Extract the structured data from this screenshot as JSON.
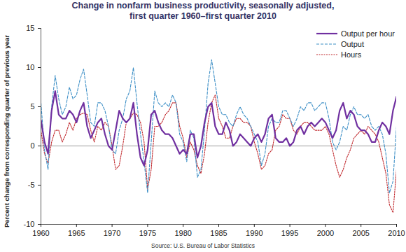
{
  "chart_data": {
    "type": "line",
    "title": "Change in nonfarm business productivity, seasonally adjusted,\nfirst quarter 1960–first quarter 2010",
    "y_label": "Percent change from corresponding quarter of previous year",
    "source": "Source:  U.S. Bureau of Labor Statistics",
    "x": [
      1960,
      1960.5,
      1961,
      1961.5,
      1962,
      1962.5,
      1963,
      1963.5,
      1964,
      1964.5,
      1965,
      1965.5,
      1966,
      1966.5,
      1967,
      1967.5,
      1968,
      1968.5,
      1969,
      1969.5,
      1970,
      1970.5,
      1971,
      1971.5,
      1972,
      1972.5,
      1973,
      1973.5,
      1974,
      1974.5,
      1975,
      1975.5,
      1976,
      1976.5,
      1977,
      1977.5,
      1978,
      1978.5,
      1979,
      1979.5,
      1980,
      1980.5,
      1981,
      1981.5,
      1982,
      1982.5,
      1983,
      1983.5,
      1984,
      1984.5,
      1985,
      1985.5,
      1986,
      1986.5,
      1987,
      1987.5,
      1988,
      1988.5,
      1989,
      1989.5,
      1990,
      1990.5,
      1991,
      1991.5,
      1992,
      1992.5,
      1993,
      1993.5,
      1994,
      1994.5,
      1995,
      1995.5,
      1996,
      1996.5,
      1997,
      1997.5,
      1998,
      1998.5,
      1999,
      1999.5,
      2000,
      2000.5,
      2001,
      2001.5,
      2002,
      2002.5,
      2003,
      2003.5,
      2004,
      2004.5,
      2005,
      2005.5,
      2006,
      2006.5,
      2007,
      2007.5,
      2008,
      2008.5,
      2009,
      2009.5,
      2010
    ],
    "series": [
      {
        "name": "Output per hour",
        "color": "#7030a0",
        "line_style": "solid",
        "values": [
          3.3,
          0.5,
          -1.0,
          4.5,
          7.0,
          4.0,
          3.5,
          3.5,
          4.5,
          4.0,
          3.0,
          4.5,
          5.5,
          2.5,
          1.0,
          2.0,
          3.0,
          3.5,
          1.5,
          0.0,
          -0.5,
          2.0,
          4.5,
          3.5,
          3.0,
          3.5,
          5.5,
          1.5,
          -1.5,
          -2.5,
          -0.5,
          4.0,
          4.5,
          3.0,
          2.0,
          1.5,
          1.5,
          1.0,
          0.0,
          -1.0,
          -0.5,
          -1.0,
          1.5,
          1.5,
          -1.5,
          0.0,
          3.0,
          5.0,
          5.5,
          2.5,
          1.5,
          1.5,
          3.0,
          2.0,
          0.0,
          0.5,
          1.5,
          1.0,
          0.5,
          0.0,
          1.0,
          1.5,
          0.5,
          1.5,
          3.5,
          4.0,
          1.0,
          0.5,
          0.5,
          1.0,
          0.0,
          0.5,
          2.0,
          2.5,
          1.5,
          2.5,
          3.0,
          2.5,
          3.0,
          3.5,
          3.0,
          2.0,
          1.0,
          2.0,
          4.5,
          5.5,
          3.5,
          4.5,
          4.0,
          2.5,
          2.0,
          2.0,
          1.5,
          0.5,
          0.5,
          2.0,
          3.0,
          2.5,
          1.5,
          4.5,
          6.3
        ]
      },
      {
        "name": "Output",
        "color": "#3d8fc6",
        "line_style": "dashed",
        "values": [
          5.5,
          -0.5,
          -3.0,
          5.0,
          9.0,
          6.0,
          4.0,
          5.0,
          7.5,
          6.0,
          6.5,
          8.5,
          9.8,
          6.5,
          3.0,
          2.5,
          5.5,
          5.5,
          4.5,
          2.5,
          -0.5,
          -1.0,
          2.0,
          3.5,
          6.0,
          7.0,
          10.0,
          5.5,
          1.5,
          -2.0,
          -6.0,
          0.5,
          7.0,
          5.5,
          5.0,
          5.5,
          5.0,
          6.5,
          5.5,
          1.5,
          0.5,
          -2.0,
          2.0,
          1.0,
          -4.0,
          -3.0,
          2.0,
          8.0,
          11.0,
          8.0,
          5.0,
          4.0,
          4.0,
          3.0,
          2.5,
          4.0,
          5.0,
          4.0,
          3.5,
          2.5,
          1.5,
          0.5,
          -2.5,
          -1.0,
          2.5,
          3.5,
          3.0,
          3.0,
          4.5,
          4.5,
          3.5,
          2.5,
          3.5,
          5.0,
          4.5,
          5.5,
          5.5,
          4.5,
          5.0,
          5.5,
          5.5,
          3.5,
          0.5,
          -0.5,
          0.5,
          2.5,
          2.0,
          4.0,
          5.0,
          4.0,
          4.0,
          3.5,
          4.0,
          2.5,
          2.0,
          2.5,
          1.5,
          -1.0,
          -6.0,
          -4.5,
          2.5
        ]
      },
      {
        "name": "Hours",
        "color": "#c0282d",
        "line_style": "dotted",
        "values": [
          2.0,
          -1.0,
          -2.2,
          0.5,
          2.0,
          2.0,
          0.5,
          1.5,
          3.0,
          2.0,
          3.5,
          4.0,
          4.2,
          4.0,
          2.0,
          0.5,
          2.5,
          2.0,
          3.0,
          2.5,
          0.0,
          -3.0,
          -2.5,
          0.0,
          3.0,
          3.5,
          4.2,
          4.0,
          3.0,
          0.5,
          -5.5,
          -3.0,
          2.5,
          2.5,
          3.0,
          4.0,
          4.5,
          5.5,
          5.5,
          2.5,
          1.0,
          -1.5,
          0.5,
          -0.5,
          -2.5,
          -3.5,
          -1.0,
          3.0,
          5.5,
          6.5,
          3.5,
          2.5,
          1.0,
          1.0,
          2.5,
          3.5,
          3.5,
          3.0,
          3.0,
          2.5,
          0.5,
          -1.0,
          -3.0,
          -2.5,
          -1.0,
          -0.5,
          2.0,
          2.5,
          4.0,
          3.5,
          3.5,
          2.0,
          1.5,
          2.5,
          3.0,
          3.0,
          2.5,
          2.0,
          2.0,
          2.0,
          2.5,
          1.5,
          -0.5,
          -2.5,
          -4.0,
          -3.0,
          -1.5,
          -0.5,
          1.0,
          1.5,
          2.0,
          1.5,
          2.5,
          2.0,
          1.5,
          0.5,
          -1.5,
          -3.5,
          -7.5,
          -8.5,
          -3.0
        ]
      }
    ],
    "xlim": [
      1960,
      2010
    ],
    "xticks": [
      1960,
      1965,
      1970,
      1975,
      1980,
      1985,
      1990,
      1995,
      2000,
      2005,
      2010
    ],
    "ylim": [
      -10,
      15
    ],
    "yticks": [
      -10,
      -5,
      0,
      5,
      10,
      15
    ],
    "baseline": 0,
    "grid": false,
    "legend": "top-right"
  }
}
